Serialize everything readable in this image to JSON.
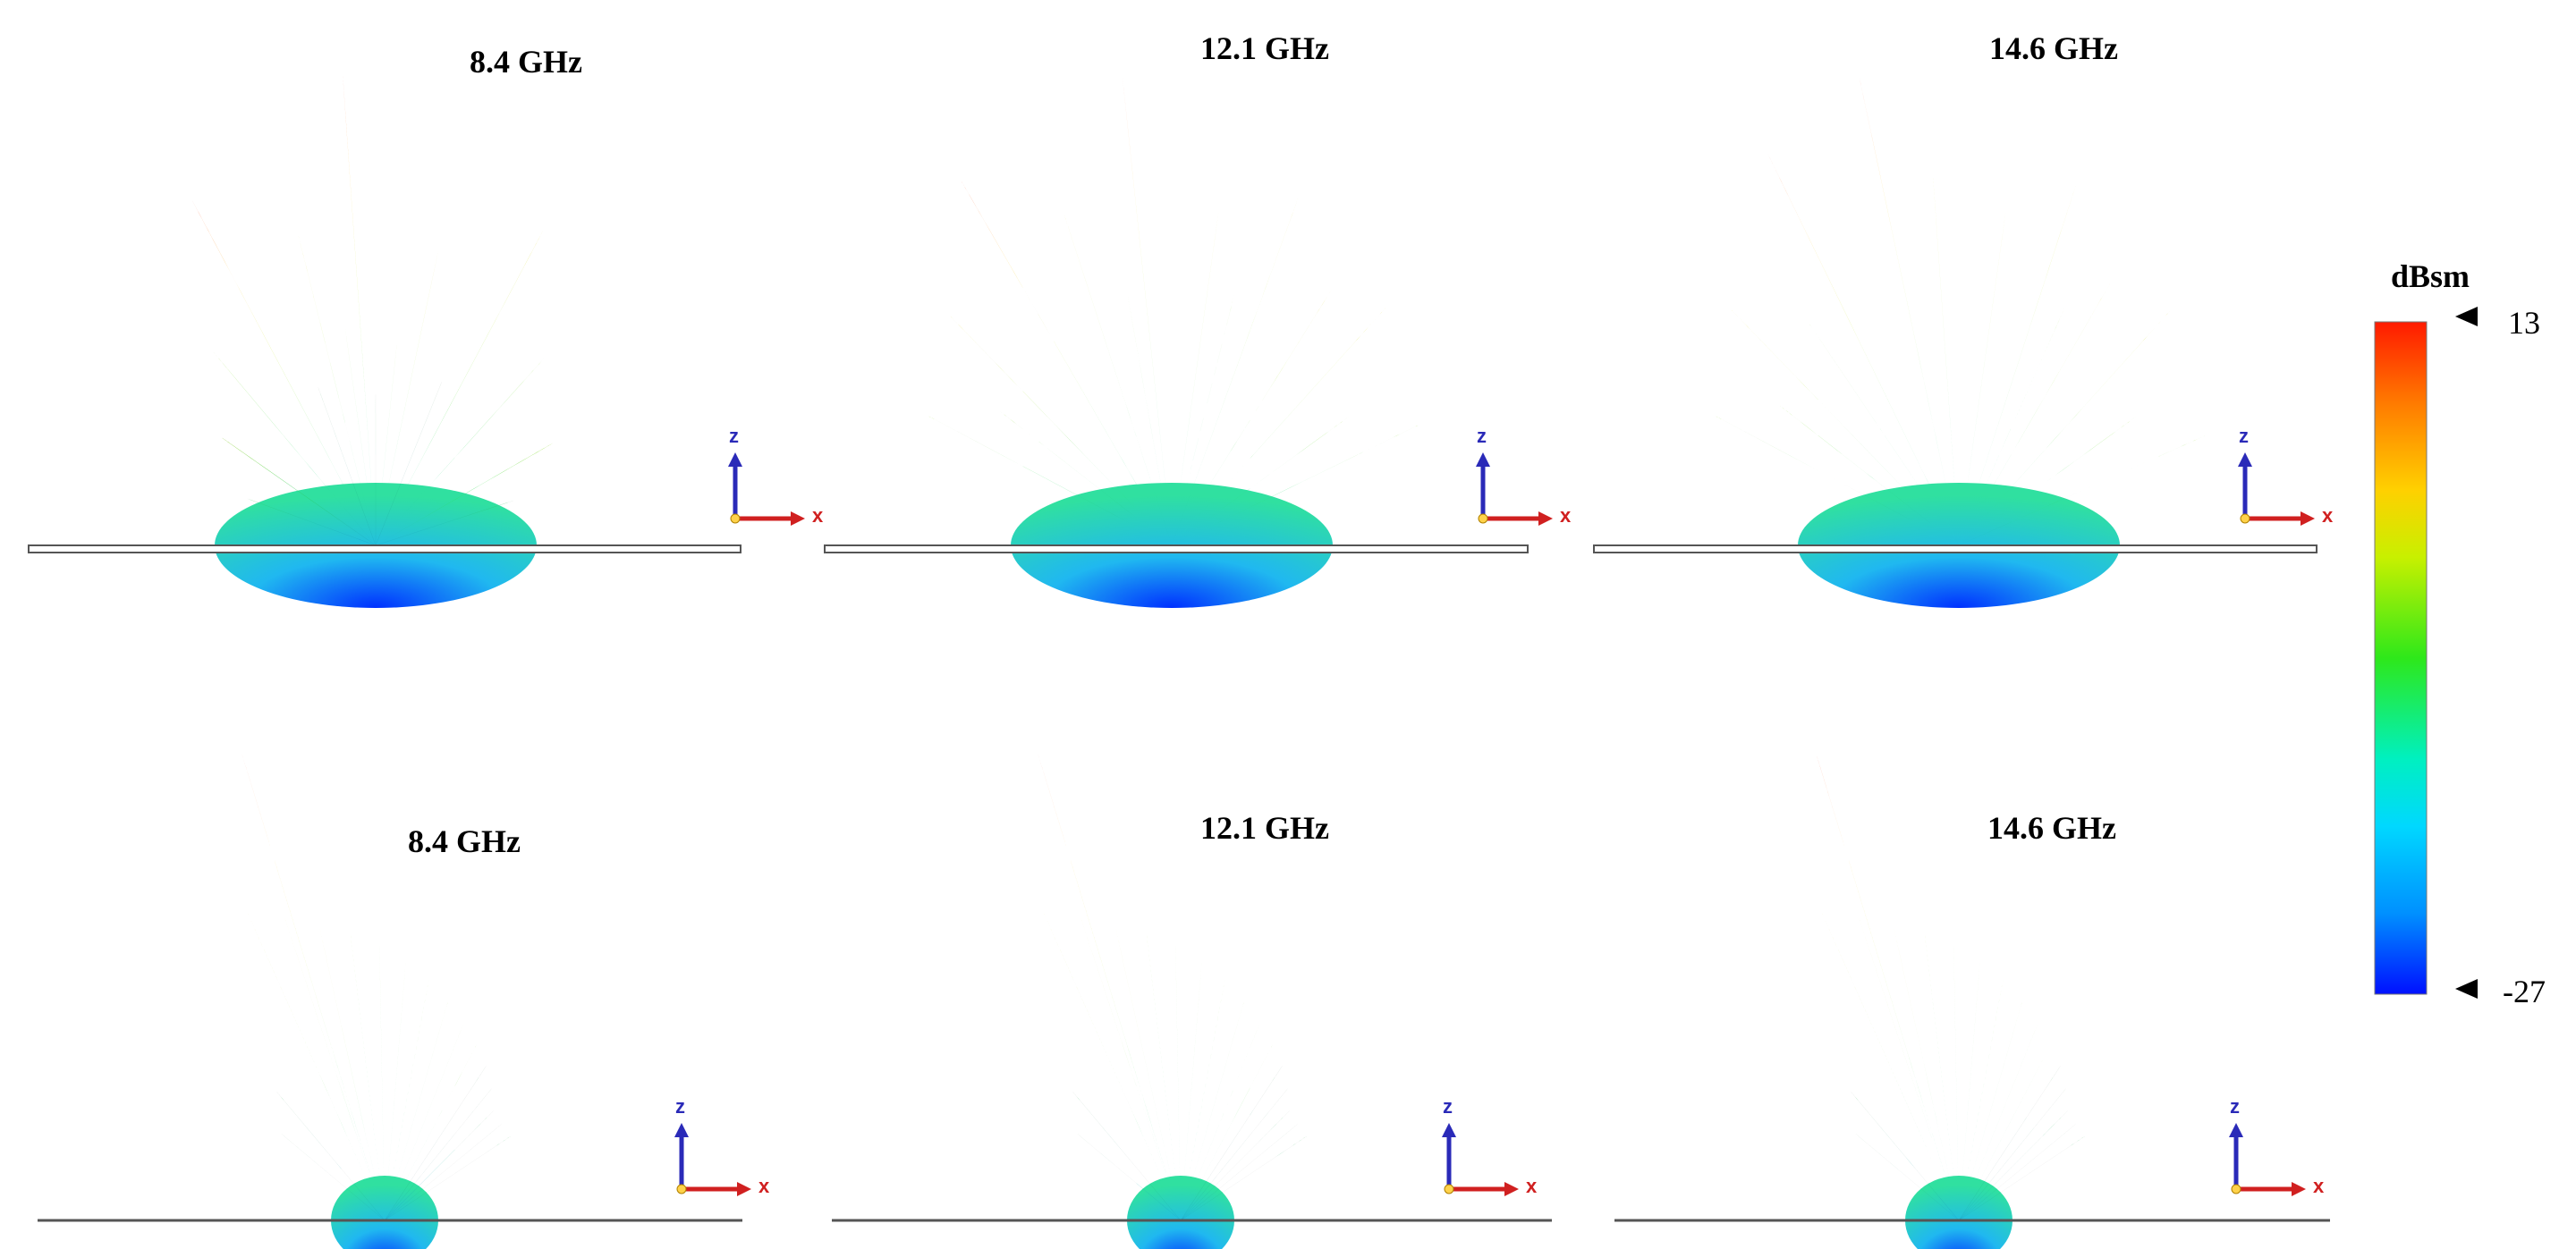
{
  "panels": [
    {
      "id": "top-1",
      "frequency": "8.4 GHz",
      "axis_z": "z",
      "axis_x": "x"
    },
    {
      "id": "top-2",
      "frequency": "12.1 GHz",
      "axis_z": "z",
      "axis_x": "x"
    },
    {
      "id": "top-3",
      "frequency": "14.6 GHz",
      "axis_z": "z",
      "axis_x": "x"
    },
    {
      "id": "bottom-1",
      "frequency": "8.4 GHz",
      "axis_z": "z",
      "axis_x": "x"
    },
    {
      "id": "bottom-2",
      "frequency": "12.1 GHz",
      "axis_z": "z",
      "axis_x": "x"
    },
    {
      "id": "bottom-3",
      "frequency": "14.6 GHz",
      "axis_z": "z",
      "axis_x": "x"
    }
  ],
  "colorbar": {
    "unit": "dBsm",
    "max_label": "13",
    "min_label": "-27",
    "colors": [
      "#ff1a00",
      "#ff7a00",
      "#ffd000",
      "#c8f000",
      "#2ee81a",
      "#00f0c0",
      "#00d8ff",
      "#0090ff",
      "#0010ff"
    ]
  }
}
